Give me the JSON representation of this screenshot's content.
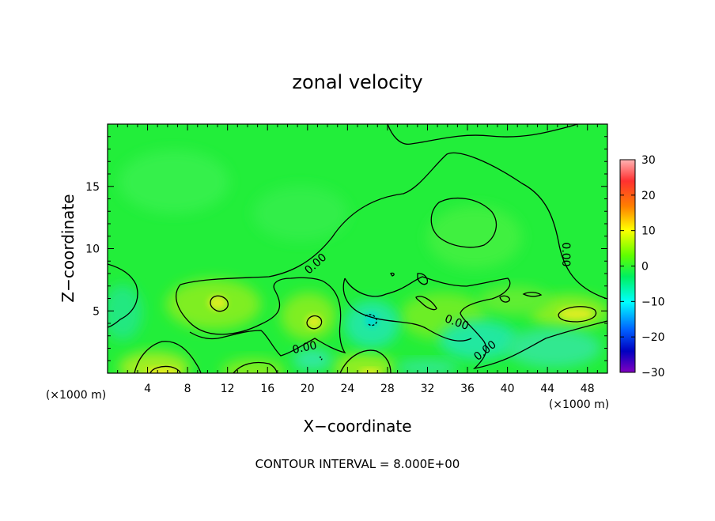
{
  "chart_data": {
    "type": "heatmap",
    "title": "zonal velocity",
    "xlabel": "X−coordinate",
    "ylabel": "Z−coordinate",
    "x_unit": "(×1000 m)",
    "y_unit": "(×1000 m)",
    "xlim": [
      0,
      50
    ],
    "ylim": [
      0,
      20
    ],
    "x_ticks": [
      4,
      8,
      12,
      16,
      20,
      24,
      28,
      32,
      36,
      40,
      44,
      48
    ],
    "y_ticks": [
      5,
      10,
      15
    ],
    "colorbar": {
      "range": [
        -30,
        30
      ],
      "ticks": [
        30,
        20,
        10,
        0,
        -10,
        -20,
        -30
      ],
      "tick_labels": [
        "30",
        "20",
        "10",
        "0",
        "−10",
        "−20",
        "−30"
      ]
    },
    "contour_interval_text": "CONTOUR INTERVAL = 8.000E+00",
    "contour_labels": [
      {
        "text": "0.00",
        "x": 22,
        "z": 9
      },
      {
        "text": "0.00",
        "x": 34,
        "z": 4
      },
      {
        "text": "0.00",
        "x": 20,
        "z": 2
      },
      {
        "text": "0.00",
        "x": 39,
        "z": 2
      },
      {
        "text": "0.00",
        "x": 45,
        "z": 9.5
      }
    ]
  }
}
